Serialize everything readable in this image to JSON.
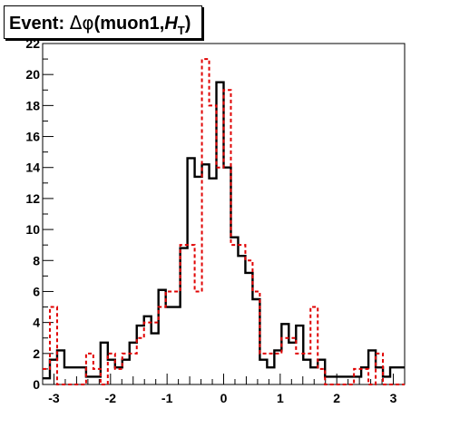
{
  "chart_data": {
    "type": "line",
    "title": "Event: Δφ(muon1,H_T)",
    "title_parts": {
      "prefix": "Event: ",
      "symbol": "Δφ",
      "args": "(muon1,",
      "var": "H",
      "sub": "T",
      "close": ")"
    },
    "xlabel": "",
    "ylabel": "",
    "xlim": [
      -3.2,
      3.2
    ],
    "ylim": [
      0,
      22
    ],
    "x_ticks": [
      -3,
      -2,
      -1,
      0,
      1,
      2,
      3
    ],
    "y_ticks": [
      0,
      2,
      4,
      6,
      8,
      10,
      12,
      14,
      16,
      18,
      20,
      22
    ],
    "grid": false,
    "bin_edges_range": [
      -3.2,
      3.2
    ],
    "bin_count": 50,
    "series": [
      {
        "style": "solid",
        "color": "#000000",
        "values": [
          0.4,
          1.6,
          2.2,
          1.1,
          1.1,
          1.1,
          0.5,
          0.5,
          2.7,
          1.6,
          1.1,
          1.6,
          2.7,
          3.8,
          4.4,
          3.3,
          6.1,
          5.0,
          5.0,
          8.8,
          14.6,
          13.4,
          14.2,
          13.3,
          19.5,
          14.0,
          9.5,
          8.3,
          7.2,
          5.5,
          1.6,
          1.1,
          2.2,
          3.9,
          2.7,
          3.8,
          1.6,
          1.1,
          1.6,
          0.5,
          0.5,
          0.5,
          0.5,
          0.5,
          1.1,
          2.2,
          1.1,
          0.5,
          1.1,
          1.1
        ]
      },
      {
        "style": "dashed",
        "color": "#e00000",
        "values": [
          1.0,
          5.0,
          0.0,
          0.0,
          0.0,
          0.0,
          2.0,
          1.0,
          0.0,
          2.0,
          1.0,
          2.0,
          2.0,
          3.0,
          4.0,
          4.0,
          5.0,
          6.0,
          6.0,
          9.0,
          9.0,
          6.0,
          21.0,
          18.0,
          14.0,
          19.0,
          9.0,
          9.0,
          8.0,
          6.0,
          2.0,
          2.0,
          2.0,
          3.0,
          3.0,
          2.0,
          2.0,
          5.0,
          1.0,
          0.0,
          0.0,
          0.0,
          0.0,
          1.0,
          1.0,
          0.0,
          2.0,
          0.0,
          0.0,
          0.0
        ]
      }
    ]
  }
}
